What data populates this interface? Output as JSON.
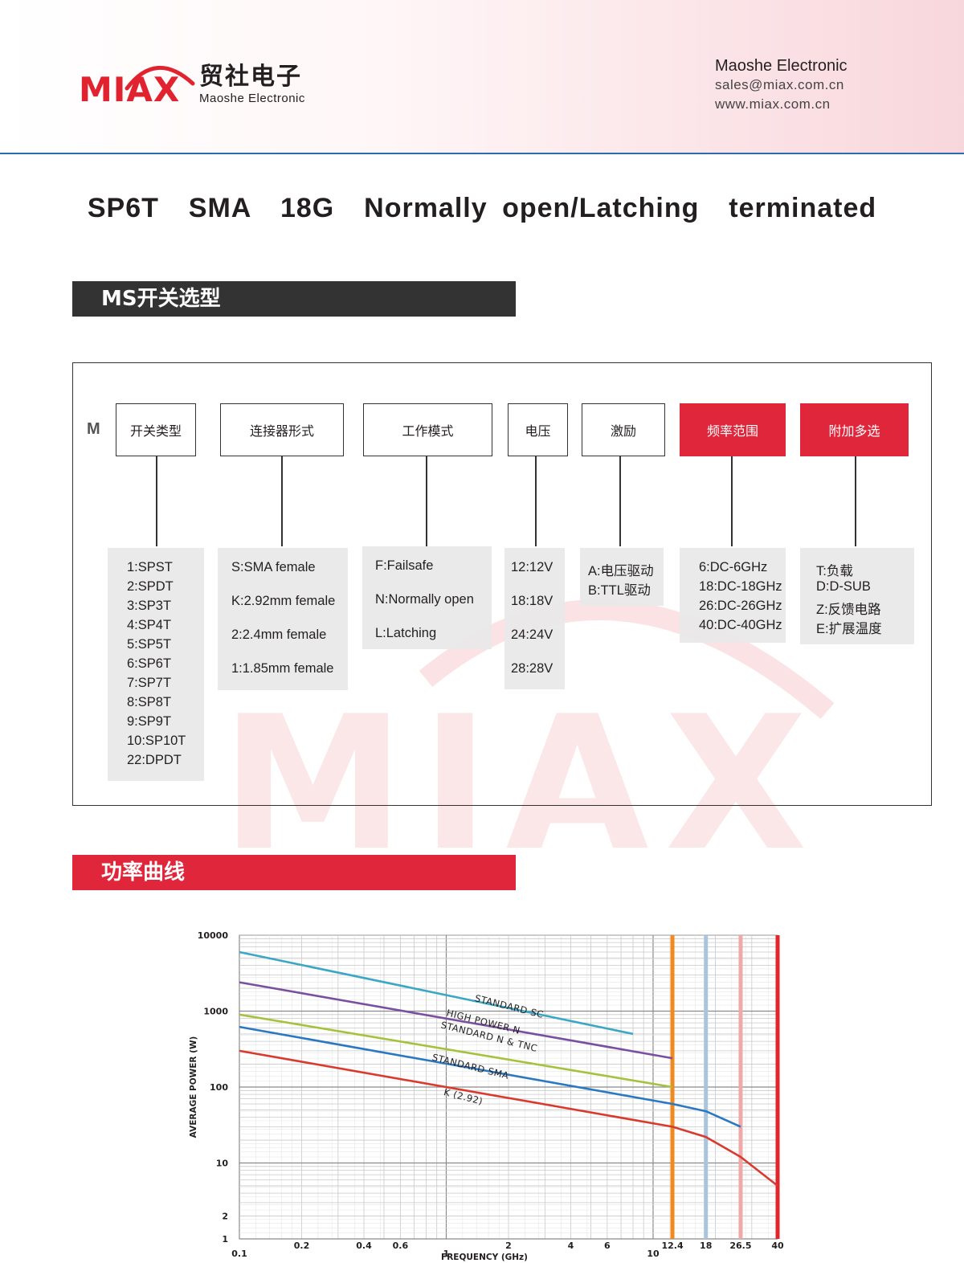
{
  "header": {
    "logo": {
      "brand": "MIAX",
      "cn_name": "贸社电子",
      "en_name": "Maoshe Electronic"
    },
    "contact": {
      "name": "Maoshe Electronic",
      "email": "sales@miax.com.cn",
      "website": "www.miax.com.cn"
    }
  },
  "page_title": "SP6T  SMA  18G  Normally open/Latching  terminated",
  "section_selection": "MS开关选型",
  "selection": {
    "prefix": "M",
    "fields": [
      {
        "label": "开关类型",
        "options": [
          "1:SPST",
          "2:SPDT",
          "3:SP3T",
          "4:SP4T",
          "5:SP5T",
          "6:SP6T",
          "7:SP7T",
          "8:SP8T",
          "9:SP9T",
          "10:SP10T",
          "22:DPDT"
        ]
      },
      {
        "label": "连接器形式",
        "options": [
          "S:SMA female",
          "K:2.92mm female",
          "2:2.4mm female",
          "1:1.85mm female"
        ]
      },
      {
        "label": "工作模式",
        "options": [
          "F:Failsafe",
          "N:Normally open",
          "L:Latching"
        ]
      },
      {
        "label": "电压",
        "options": [
          "12:12V",
          "18:18V",
          "24:24V",
          "28:28V"
        ]
      },
      {
        "label": "激励",
        "options": [
          "A:电压驱动",
          "B:TTL驱动"
        ]
      },
      {
        "label": "频率范围",
        "options": [
          "6:DC-6GHz",
          "18:DC-18GHz",
          "26:DC-26GHz",
          "40:DC-40GHz"
        ]
      },
      {
        "label": "附加多选",
        "options": [
          "T:负载",
          "D:D-SUB",
          "Z:反馈电路",
          "E:扩展温度"
        ]
      }
    ],
    "highlight_color": "#e0263a"
  },
  "watermark": "MIAX",
  "section_power": "功率曲线",
  "chart_data": {
    "type": "line",
    "x_scale": "log",
    "y_scale": "log",
    "xlabel": "FREQUENCY (GHz)",
    "ylabel": "AVERAGE POWER (W)",
    "xlim": [
      0.1,
      40
    ],
    "ylim": [
      1,
      10000
    ],
    "x_ticks": [
      "0.1",
      "0.2",
      "0.4",
      "0.6",
      "1",
      "2",
      "4",
      "6",
      "10",
      "12.4",
      "18",
      "26.5",
      "40"
    ],
    "y_ticks": [
      "1",
      "2",
      "10",
      "100",
      "1000",
      "10000"
    ],
    "grid": true,
    "cutoffs": [
      {
        "x": 12.4,
        "color": "#ee8a1e"
      },
      {
        "x": 18,
        "color": "#a9c4dc"
      },
      {
        "x": 26.5,
        "color": "#f0a8a8"
      },
      {
        "x": 40,
        "color": "#e0262b"
      }
    ],
    "series": [
      {
        "name": "STANDARD SC",
        "color": "#3aa7c4",
        "x": [
          0.1,
          8
        ],
        "y": [
          6000,
          500
        ]
      },
      {
        "name": "HIGH POWER N",
        "color": "#7a4fa0",
        "x": [
          0.1,
          12.4
        ],
        "y": [
          2400,
          240
        ]
      },
      {
        "name": "STANDARD N & TNC",
        "color": "#a6c23c",
        "x": [
          0.1,
          12.4
        ],
        "y": [
          900,
          100
        ]
      },
      {
        "name": "STANDARD SMA",
        "color": "#2b78c2",
        "x": [
          0.1,
          12.4,
          18,
          26.5
        ],
        "y": [
          620,
          60,
          48,
          30
        ]
      },
      {
        "name": "K (2.92)",
        "color": "#d93a2e",
        "x": [
          0.1,
          12.4,
          18,
          26.5,
          40
        ],
        "y": [
          300,
          30,
          22,
          12,
          5
        ]
      }
    ]
  }
}
